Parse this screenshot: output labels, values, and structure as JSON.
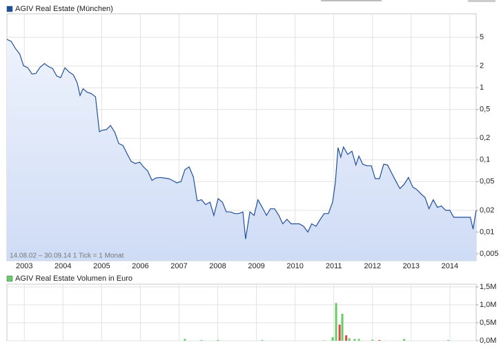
{
  "chart_data": [
    {
      "type": "line",
      "subtitle": "14.08.02 – 30.09.14   1 Tick = 1 Monat",
      "yscale": "log",
      "grid": true,
      "legend": "top-left",
      "area": true,
      "x": [
        2002.55,
        2002.66,
        2002.77,
        2002.88,
        2002.98,
        2003.09,
        2003.2,
        2003.3,
        2003.41,
        2003.52,
        2003.62,
        2003.73,
        2003.84,
        2003.94,
        2004.05,
        2004.16,
        2004.27,
        2004.37,
        2004.44,
        2004.52,
        2004.62,
        2004.73,
        2004.84,
        2004.94,
        2005.01,
        2005.12,
        2005.23,
        2005.34,
        2005.44,
        2005.55,
        2005.66,
        2005.76,
        2005.87,
        2005.98,
        2006.08,
        2006.19,
        2006.3,
        2006.4,
        2006.51,
        2006.62,
        2006.73,
        2006.83,
        2006.94,
        2007.05,
        2007.15,
        2007.26,
        2007.37,
        2007.47,
        2007.58,
        2007.69,
        2007.8,
        2007.9,
        2008.01,
        2008.12,
        2008.22,
        2008.33,
        2008.44,
        2008.54,
        2008.65,
        2008.72,
        2008.83,
        2008.94,
        2009.04,
        2009.15,
        2009.26,
        2009.36,
        2009.47,
        2009.58,
        2009.68,
        2009.79,
        2009.9,
        2010.01,
        2010.11,
        2010.22,
        2010.33,
        2010.43,
        2010.54,
        2010.65,
        2010.75,
        2010.86,
        2010.97,
        2011.04,
        2011.11,
        2011.18,
        2011.25,
        2011.36,
        2011.47,
        2011.57,
        2011.65,
        2011.75,
        2011.86,
        2011.97,
        2012.07,
        2012.18,
        2012.29,
        2012.39,
        2012.5,
        2012.61,
        2012.71,
        2012.82,
        2012.93,
        2013.04,
        2013.14,
        2013.25,
        2013.36,
        2013.46,
        2013.57,
        2013.68,
        2013.78,
        2013.89,
        2014.0,
        2014.1,
        2014.21,
        2014.32,
        2014.43,
        2014.53,
        2014.6,
        2014.68
      ],
      "series": [
        {
          "name": "AGIV Real Estate (München)",
          "color": "#1f4e9c",
          "values": [
            4.68,
            4.38,
            3.51,
            2.94,
            2.02,
            1.89,
            1.55,
            1.58,
            1.93,
            2.16,
            1.97,
            1.85,
            1.45,
            1.38,
            1.89,
            1.65,
            1.51,
            1.16,
            0.78,
            0.97,
            0.87,
            0.83,
            0.75,
            0.246,
            0.258,
            0.263,
            0.3,
            0.241,
            0.169,
            0.158,
            0.121,
            0.095,
            0.089,
            0.093,
            0.08,
            0.07,
            0.052,
            0.056,
            0.057,
            0.056,
            0.055,
            0.052,
            0.048,
            0.05,
            0.073,
            0.08,
            0.058,
            0.027,
            0.028,
            0.024,
            0.026,
            0.017,
            0.029,
            0.026,
            0.019,
            0.019,
            0.018,
            0.018,
            0.019,
            0.008,
            0.019,
            0.017,
            0.028,
            0.022,
            0.017,
            0.021,
            0.021,
            0.017,
            0.013,
            0.015,
            0.013,
            0.013,
            0.013,
            0.012,
            0.01,
            0.013,
            0.012,
            0.015,
            0.018,
            0.018,
            0.026,
            0.048,
            0.148,
            0.109,
            0.151,
            0.119,
            0.132,
            0.085,
            0.113,
            0.087,
            0.083,
            0.083,
            0.055,
            0.055,
            0.087,
            0.085,
            0.065,
            0.05,
            0.04,
            0.046,
            0.057,
            0.042,
            0.039,
            0.034,
            0.03,
            0.021,
            0.028,
            0.022,
            0.023,
            0.02,
            0.02,
            0.016,
            0.016,
            0.016,
            0.016,
            0.016,
            0.011,
            0.02
          ]
        }
      ],
      "xlim": [
        2002.55,
        2014.68
      ],
      "xticks": [
        2003,
        2004,
        2005,
        2006,
        2007,
        2008,
        2009,
        2010,
        2011,
        2012,
        2013,
        2014
      ],
      "ylim": [
        0.004,
        10.6
      ],
      "yticks": [
        {
          "value": 0.005,
          "label": "0,005"
        },
        {
          "value": 0.01,
          "label": "0,01"
        },
        {
          "value": 0.02,
          "label": "0,02"
        },
        {
          "value": 0.05,
          "label": "0,05"
        },
        {
          "value": 0.1,
          "label": "0,1"
        },
        {
          "value": 0.2,
          "label": "0,2"
        },
        {
          "value": 0.5,
          "label": "0,5"
        },
        1,
        2,
        5
      ]
    },
    {
      "type": "bar",
      "grid": true,
      "legend": "top-left",
      "series": [
        {
          "name": "AGIV Real Estate Volumen in Euro",
          "color": "#66cc66",
          "x": [
            2007.15,
            2007.58,
            2008.01,
            2009.15,
            2010.75,
            2010.97,
            2011.06,
            2011.15,
            2011.22,
            2011.32,
            2011.4,
            2011.54,
            2011.65,
            2012.0,
            2012.18,
            2012.82,
            2013.96
          ],
          "values": [
            50000,
            20000,
            20000,
            20000,
            10000,
            100000,
            1050000,
            450000,
            750000,
            150000,
            70000,
            50000,
            50000,
            30000,
            20000,
            50000,
            20000
          ],
          "colors": [
            "#66cc66",
            "#66cc66",
            "#66cc66",
            "#66cc66",
            "#66cc66",
            "#66cc66",
            "#66cc66",
            "#dd4444",
            "#66cc66",
            "#dd4444",
            "#66cc66",
            "#66cc66",
            "#66cc66",
            "#66cc66",
            "#dd4444",
            "#66cc66",
            "#66cc66"
          ]
        }
      ],
      "xlim": [
        2002.55,
        2014.68
      ],
      "xticks": [
        2003,
        2004,
        2005,
        2006,
        2007,
        2008,
        2009,
        2010,
        2011,
        2012,
        2013,
        2014
      ],
      "ylim": [
        0,
        1500000
      ],
      "yticks": [
        {
          "value": 0,
          "label": "0,0M"
        },
        {
          "value": 500000,
          "label": "0,5M"
        },
        {
          "value": 1000000,
          "label": "1,0M"
        },
        {
          "value": 1500000,
          "label": "1,5M"
        }
      ]
    }
  ]
}
